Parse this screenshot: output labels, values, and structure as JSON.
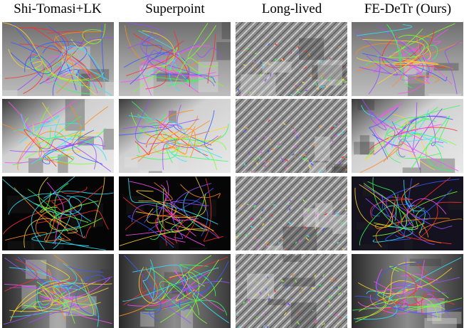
{
  "columns": [
    "Shi-Tomasi+LK",
    "Superpoint",
    "Long-lived",
    "FE-DeTr (Ours)"
  ]
}
